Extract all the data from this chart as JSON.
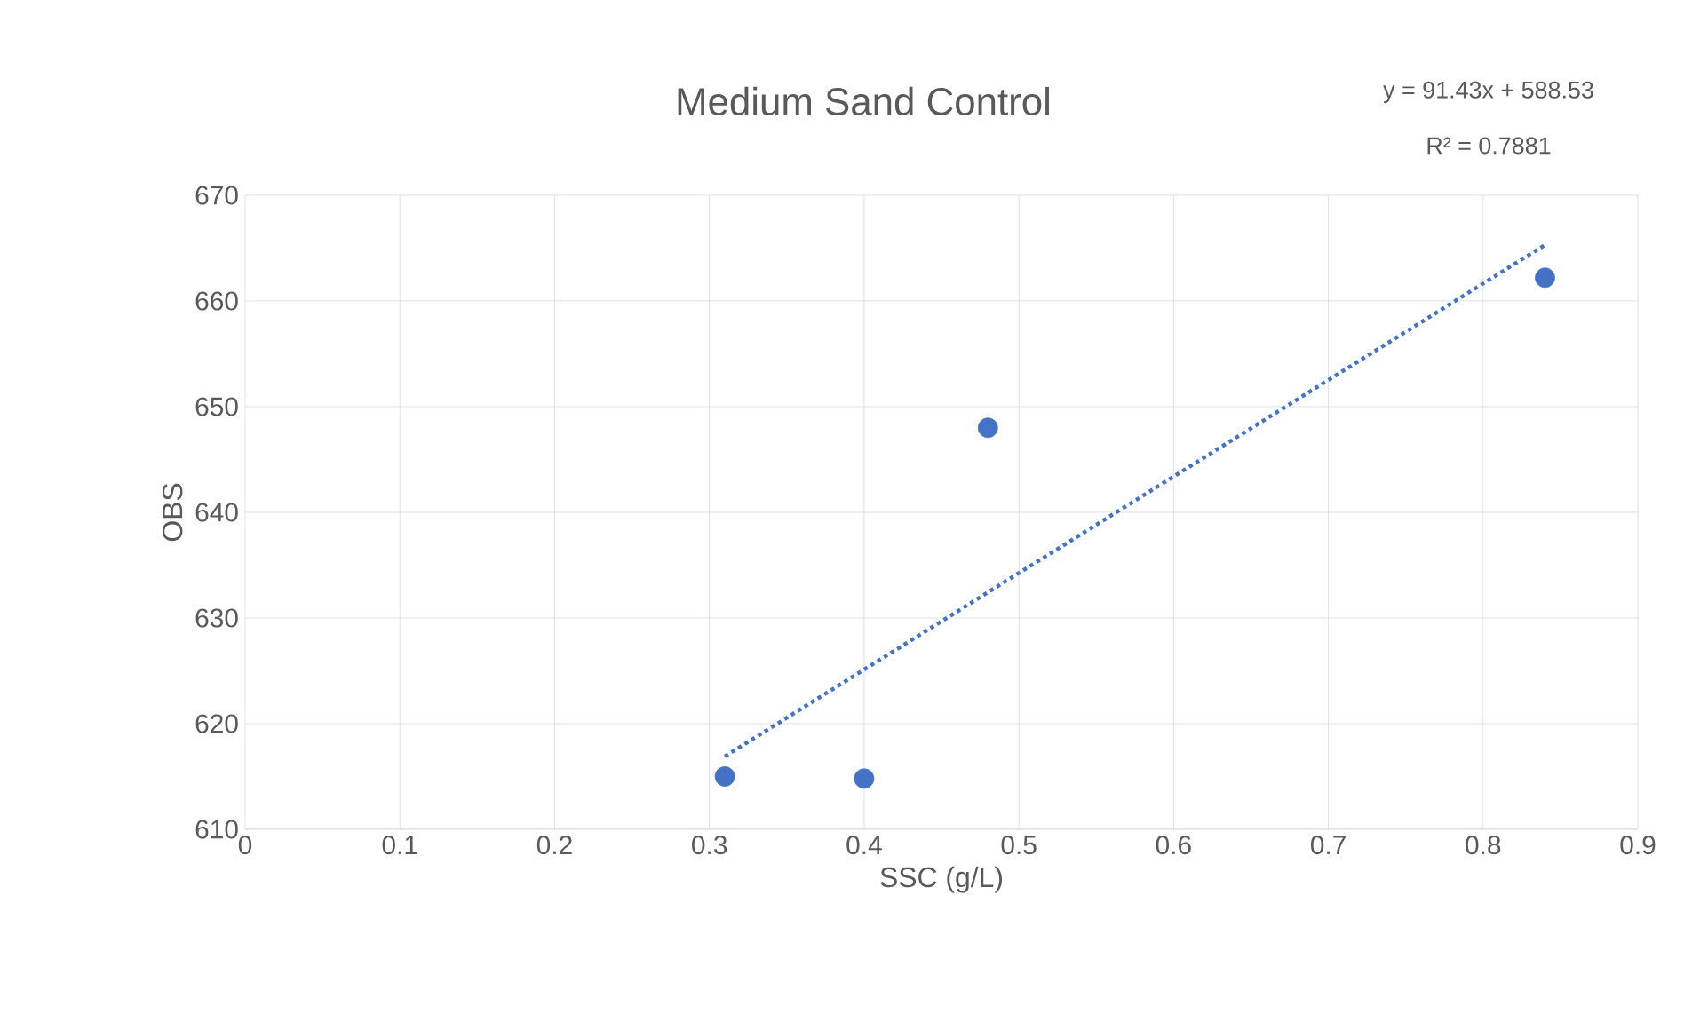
{
  "chart_data": {
    "type": "scatter",
    "title": "Medium Sand Control",
    "xlabel": "SSC (g/L)",
    "ylabel": "OBS",
    "annotations": [
      "y = 91.43x + 588.53",
      "R² = 0.7881"
    ],
    "series": [
      {
        "color": "#4472c4",
        "x": [
          0.31,
          0.4,
          0.48,
          0.84
        ],
        "values": [
          615.0,
          614.8,
          648.0,
          662.2
        ],
        "marker": "circle"
      },
      {
        "type": "line",
        "color": "#4472c4",
        "x": [
          0.31,
          0.84
        ],
        "values": [
          616.9,
          665.3
        ],
        "marker": "none",
        "line_style": "dotted"
      }
    ],
    "xlim": [
      0,
      0.9
    ],
    "ylim": [
      610,
      670
    ],
    "xticks": [
      0,
      0.1,
      0.2,
      0.3,
      0.4,
      0.5,
      0.6,
      0.7,
      0.8,
      0.9
    ],
    "yticks": [
      610,
      620,
      630,
      640,
      650,
      660,
      670
    ],
    "grid": true
  }
}
